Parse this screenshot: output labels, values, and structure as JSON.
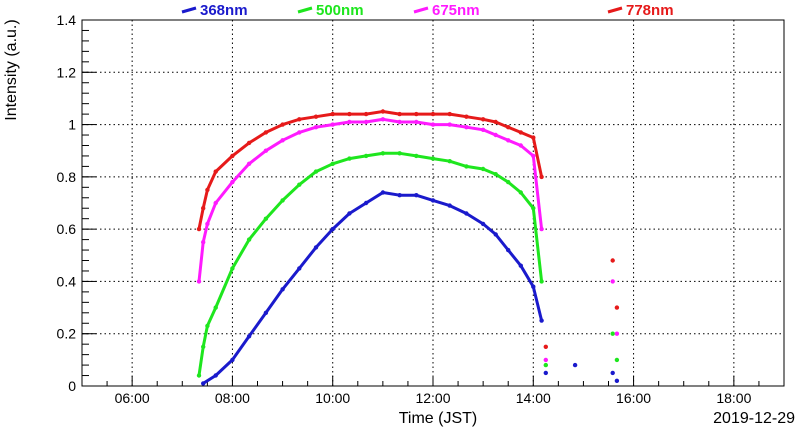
{
  "chart_data": {
    "type": "scatter",
    "xlabel": "Time (JST)",
    "ylabel": "Intensity (a.u.)",
    "date_label": "2019-12-29",
    "xlim": [
      "05:00",
      "19:00"
    ],
    "ylim": [
      0,
      1.4
    ],
    "grid": true,
    "legend_position": "top",
    "x_ticks": [
      "06:00",
      "08:00",
      "10:00",
      "12:00",
      "14:00",
      "16:00",
      "18:00"
    ],
    "y_ticks": [
      "0",
      "0.2",
      "0.4",
      "0.6",
      "0.8",
      "1",
      "1.2",
      "1.4"
    ],
    "series": [
      {
        "name": "368nm",
        "color": "#1a1acc",
        "points": [
          [
            "07:25",
            0.01
          ],
          [
            "07:40",
            0.04
          ],
          [
            "08:00",
            0.1
          ],
          [
            "08:20",
            0.19
          ],
          [
            "08:40",
            0.28
          ],
          [
            "09:00",
            0.37
          ],
          [
            "09:20",
            0.45
          ],
          [
            "09:40",
            0.53
          ],
          [
            "10:00",
            0.6
          ],
          [
            "10:20",
            0.66
          ],
          [
            "10:40",
            0.7
          ],
          [
            "11:00",
            0.74
          ],
          [
            "11:20",
            0.73
          ],
          [
            "11:40",
            0.73
          ],
          [
            "12:00",
            0.71
          ],
          [
            "12:20",
            0.69
          ],
          [
            "12:40",
            0.66
          ],
          [
            "13:00",
            0.62
          ],
          [
            "13:15",
            0.58
          ],
          [
            "13:30",
            0.52
          ],
          [
            "13:45",
            0.46
          ],
          [
            "14:00",
            0.38
          ],
          [
            "14:10",
            0.25
          ],
          [
            "14:15",
            0.05
          ],
          [
            "14:50",
            0.08
          ],
          [
            "15:35",
            0.05
          ],
          [
            "15:40",
            0.02
          ]
        ]
      },
      {
        "name": "500nm",
        "color": "#1ee61e",
        "points": [
          [
            "07:20",
            0.04
          ],
          [
            "07:25",
            0.15
          ],
          [
            "07:30",
            0.23
          ],
          [
            "07:40",
            0.3
          ],
          [
            "08:00",
            0.45
          ],
          [
            "08:20",
            0.56
          ],
          [
            "08:40",
            0.64
          ],
          [
            "09:00",
            0.71
          ],
          [
            "09:20",
            0.77
          ],
          [
            "09:40",
            0.82
          ],
          [
            "10:00",
            0.85
          ],
          [
            "10:20",
            0.87
          ],
          [
            "10:40",
            0.88
          ],
          [
            "11:00",
            0.89
          ],
          [
            "11:20",
            0.89
          ],
          [
            "11:40",
            0.88
          ],
          [
            "12:00",
            0.87
          ],
          [
            "12:20",
            0.86
          ],
          [
            "12:40",
            0.84
          ],
          [
            "13:00",
            0.83
          ],
          [
            "13:15",
            0.81
          ],
          [
            "13:30",
            0.78
          ],
          [
            "13:45",
            0.74
          ],
          [
            "14:00",
            0.68
          ],
          [
            "14:10",
            0.4
          ],
          [
            "14:15",
            0.08
          ],
          [
            "15:35",
            0.2
          ],
          [
            "15:40",
            0.1
          ]
        ]
      },
      {
        "name": "675nm",
        "color": "#ff1aff",
        "points": [
          [
            "07:20",
            0.4
          ],
          [
            "07:25",
            0.55
          ],
          [
            "07:30",
            0.62
          ],
          [
            "07:40",
            0.7
          ],
          [
            "08:00",
            0.78
          ],
          [
            "08:20",
            0.85
          ],
          [
            "08:40",
            0.9
          ],
          [
            "09:00",
            0.94
          ],
          [
            "09:20",
            0.97
          ],
          [
            "09:40",
            0.99
          ],
          [
            "10:00",
            1.0
          ],
          [
            "10:20",
            1.01
          ],
          [
            "10:40",
            1.01
          ],
          [
            "11:00",
            1.02
          ],
          [
            "11:20",
            1.01
          ],
          [
            "11:40",
            1.01
          ],
          [
            "12:00",
            1.0
          ],
          [
            "12:20",
            1.0
          ],
          [
            "12:40",
            0.99
          ],
          [
            "13:00",
            0.98
          ],
          [
            "13:15",
            0.96
          ],
          [
            "13:30",
            0.94
          ],
          [
            "13:45",
            0.92
          ],
          [
            "14:00",
            0.88
          ],
          [
            "14:10",
            0.6
          ],
          [
            "14:15",
            0.1
          ],
          [
            "15:35",
            0.4
          ],
          [
            "15:40",
            0.2
          ]
        ]
      },
      {
        "name": "778nm",
        "color": "#e61a1a",
        "points": [
          [
            "07:20",
            0.6
          ],
          [
            "07:25",
            0.68
          ],
          [
            "07:30",
            0.75
          ],
          [
            "07:40",
            0.82
          ],
          [
            "08:00",
            0.88
          ],
          [
            "08:20",
            0.93
          ],
          [
            "08:40",
            0.97
          ],
          [
            "09:00",
            1.0
          ],
          [
            "09:20",
            1.02
          ],
          [
            "09:40",
            1.03
          ],
          [
            "10:00",
            1.04
          ],
          [
            "10:20",
            1.04
          ],
          [
            "10:40",
            1.04
          ],
          [
            "11:00",
            1.05
          ],
          [
            "11:20",
            1.04
          ],
          [
            "11:40",
            1.04
          ],
          [
            "12:00",
            1.04
          ],
          [
            "12:20",
            1.04
          ],
          [
            "12:40",
            1.03
          ],
          [
            "13:00",
            1.02
          ],
          [
            "13:15",
            1.01
          ],
          [
            "13:30",
            0.99
          ],
          [
            "13:45",
            0.97
          ],
          [
            "14:00",
            0.95
          ],
          [
            "14:10",
            0.8
          ],
          [
            "14:15",
            0.15
          ],
          [
            "15:35",
            0.48
          ],
          [
            "15:40",
            0.3
          ]
        ]
      }
    ]
  }
}
